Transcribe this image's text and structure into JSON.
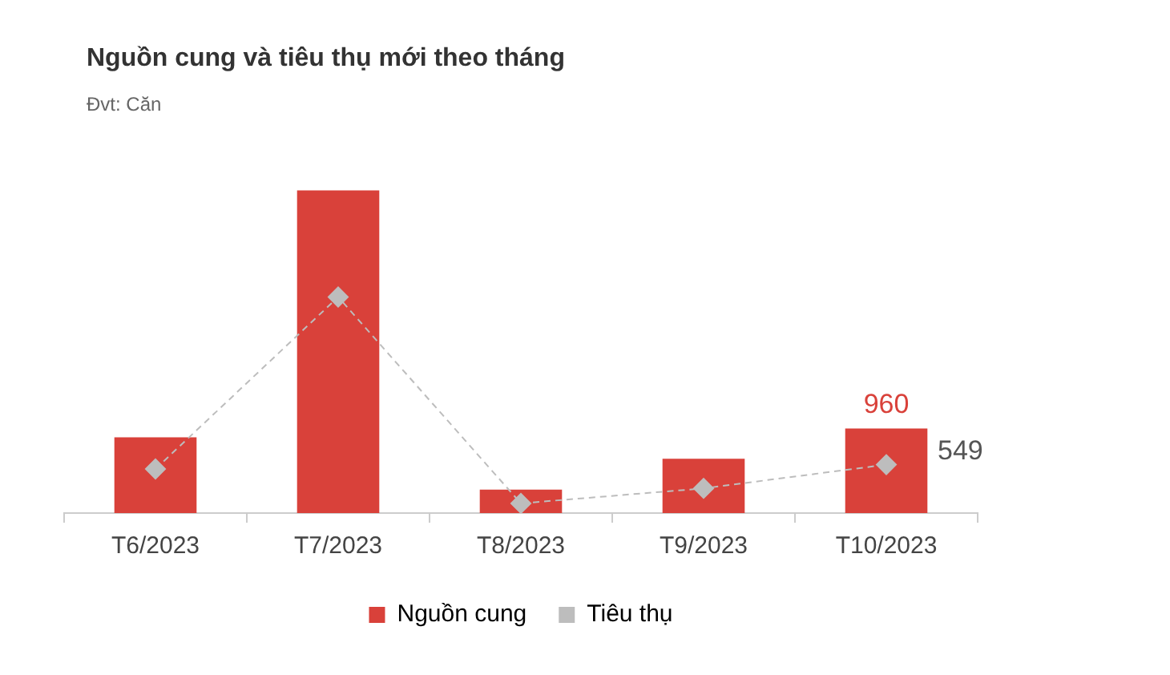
{
  "chart_data": {
    "type": "bar",
    "title": "Nguồn cung và tiêu thụ mới theo tháng",
    "subtitle": "Đvt: Căn",
    "categories": [
      "T6/2023",
      "T7/2023",
      "T8/2023",
      "T9/2023",
      "T10/2023"
    ],
    "series": [
      {
        "name": "Nguồn cung",
        "color": "#d9413a",
        "values": [
          858,
          3660,
          265,
          617,
          960
        ],
        "value_labels": [
          null,
          null,
          null,
          null,
          "960"
        ]
      },
      {
        "name": "Tiêu thụ",
        "type": "line",
        "color": "#bdbdbd",
        "values": [
          500,
          2450,
          110,
          280,
          549
        ],
        "value_labels": [
          null,
          null,
          null,
          null,
          "549"
        ],
        "marker": "diamond",
        "line_style": "dashed"
      }
    ],
    "grid": false,
    "legend": "bottom"
  }
}
